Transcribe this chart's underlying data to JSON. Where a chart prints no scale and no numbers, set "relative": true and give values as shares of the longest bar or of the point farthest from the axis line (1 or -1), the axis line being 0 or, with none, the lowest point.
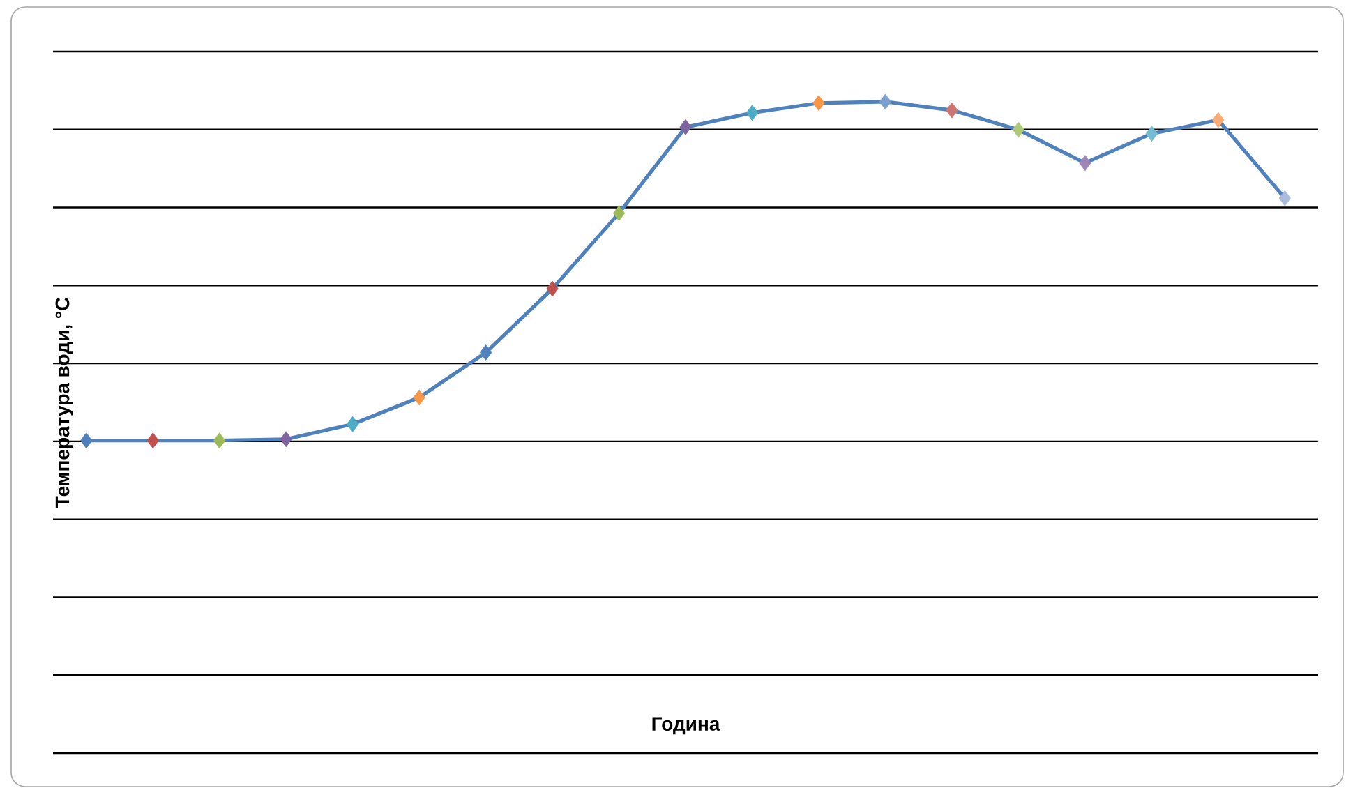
{
  "chart_data": {
    "type": "line",
    "relative": true,
    "xlabel": "Година",
    "ylabel": "Температура води, °C",
    "categories": [
      null,
      null,
      null,
      null,
      null,
      null,
      null,
      null,
      null,
      null,
      null,
      null,
      null,
      null,
      null,
      null,
      null,
      null,
      null
    ],
    "values": [
      0.48,
      0.48,
      0.48,
      0.482,
      0.505,
      0.546,
      0.615,
      0.713,
      0.829,
      0.961,
      0.983,
      0.998,
      1.0,
      0.987,
      0.957,
      0.906,
      0.951,
      0.972,
      0.852
    ],
    "colors": [
      "#4f81bd",
      "#c0504d",
      "#9bbb59",
      "#8064a2",
      "#4bacc6",
      "#f79646",
      "#4f81bd",
      "#c0504d",
      "#9bbb59",
      "#8064a2",
      "#4bacc6",
      "#f79646",
      "#7ba0cd",
      "#cd7371",
      "#afc97a",
      "#9d87b6",
      "#75bcd4",
      "#f9ab73",
      "#a9bcdb"
    ],
    "color": "#4f81bd",
    "marker": "diamond",
    "grid": "y"
  }
}
